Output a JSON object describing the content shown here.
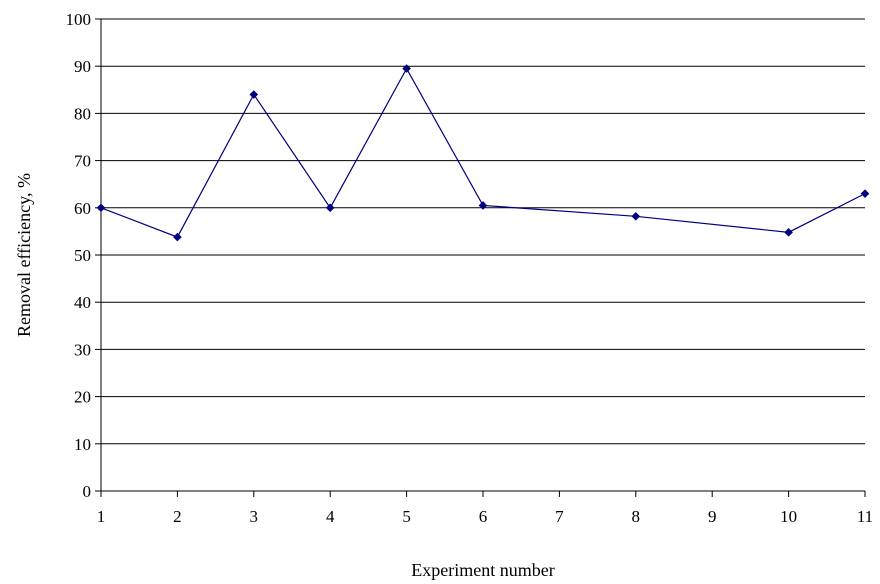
{
  "chart_data": {
    "type": "line",
    "categories": [
      "1",
      "2",
      "3",
      "4",
      "5",
      "6",
      "7",
      "8",
      "9",
      "10",
      "11"
    ],
    "series": [
      {
        "color": "#000080",
        "points": [
          {
            "x": "1",
            "y": 60
          },
          {
            "x": "2",
            "y": 53.8
          },
          {
            "x": "3",
            "y": 84
          },
          {
            "x": "4",
            "y": 60
          },
          {
            "x": "5",
            "y": 89.5
          },
          {
            "x": "6",
            "y": 60.5
          },
          {
            "x": "8",
            "y": 58.2
          },
          {
            "x": "10",
            "y": 54.8
          },
          {
            "x": "11",
            "y": 63
          }
        ]
      }
    ],
    "xlabel": "Experiment number",
    "ylabel": "Removal efficiency, %",
    "ylim": [
      0,
      100
    ],
    "yticks": [
      0,
      10,
      20,
      30,
      40,
      50,
      60,
      70,
      80,
      90,
      100
    ],
    "grid": true,
    "legend": "none"
  }
}
